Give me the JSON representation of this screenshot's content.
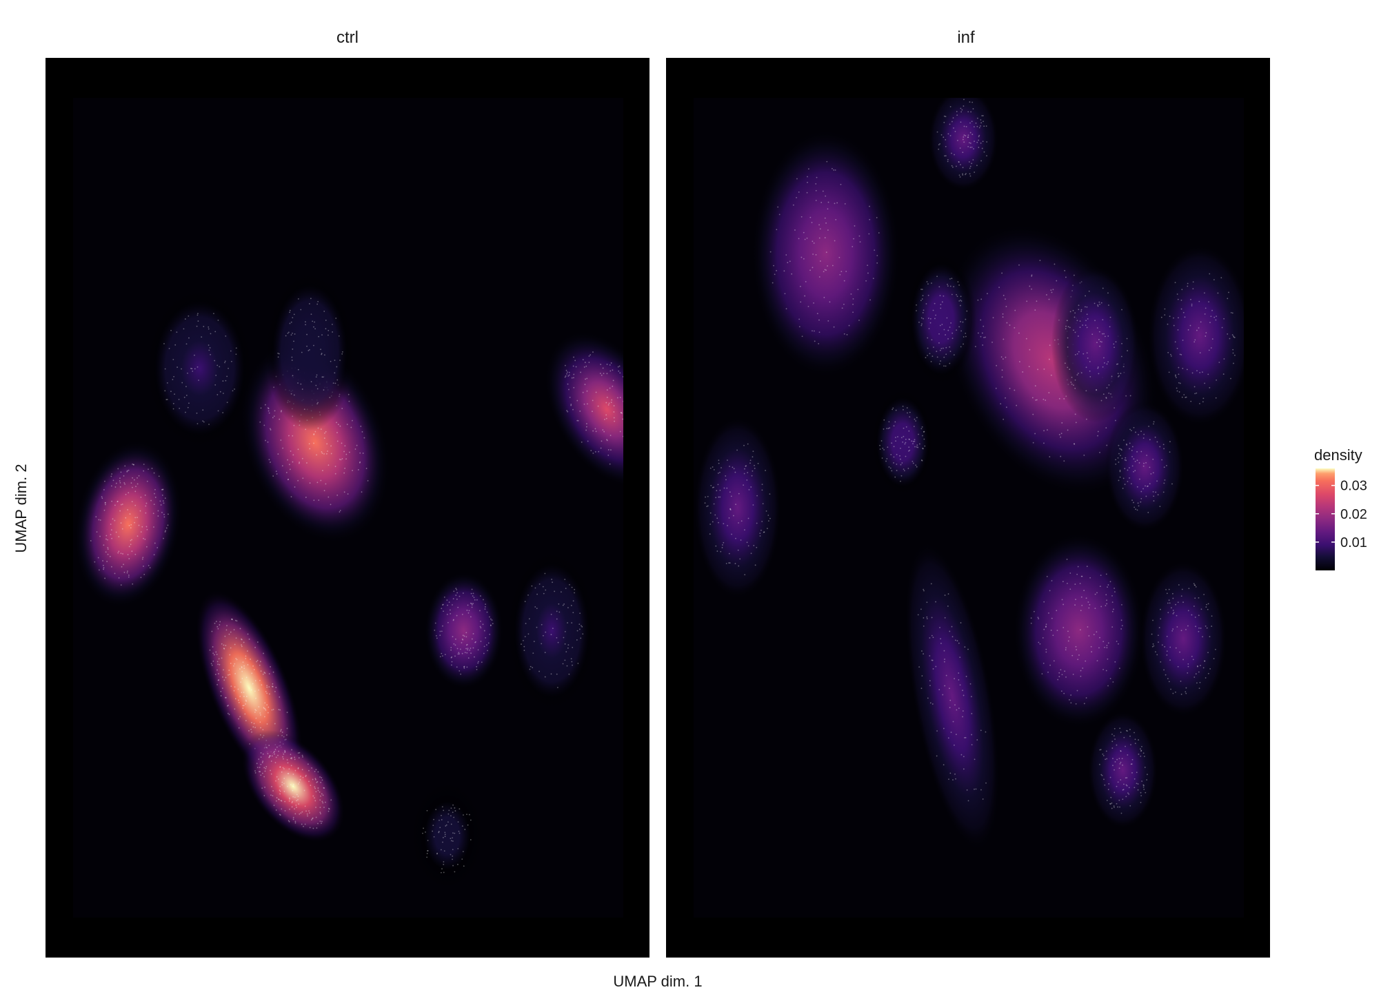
{
  "chart_data": {
    "type": "heatmap",
    "subtype": "faceted UMAP density plot",
    "xlabel": "UMAP dim. 1",
    "ylabel": "UMAP dim. 2",
    "panels": [
      {
        "label": "ctrl",
        "clusters": [
          {
            "x": 0.1,
            "y": 0.52,
            "sx": 0.06,
            "sy": 0.065,
            "rot": 10,
            "peak": 0.026
          },
          {
            "x": 0.44,
            "y": 0.42,
            "sx": 0.08,
            "sy": 0.08,
            "rot": -20,
            "peak": 0.027
          },
          {
            "x": 0.97,
            "y": 0.38,
            "sx": 0.06,
            "sy": 0.065,
            "rot": -30,
            "peak": 0.022
          },
          {
            "x": 0.23,
            "y": 0.33,
            "sx": 0.06,
            "sy": 0.06,
            "rot": 0,
            "peak": 0.006
          },
          {
            "x": 0.43,
            "y": 0.31,
            "sx": 0.05,
            "sy": 0.06,
            "rot": 0,
            "peak": 0.005
          },
          {
            "x": 0.71,
            "y": 0.65,
            "sx": 0.045,
            "sy": 0.045,
            "rot": 0,
            "peak": 0.017
          },
          {
            "x": 0.87,
            "y": 0.65,
            "sx": 0.05,
            "sy": 0.06,
            "rot": 0,
            "peak": 0.006
          },
          {
            "x": 0.32,
            "y": 0.72,
            "sx": 0.045,
            "sy": 0.08,
            "rot": -22,
            "peak": 0.036
          },
          {
            "x": 0.4,
            "y": 0.84,
            "sx": 0.045,
            "sy": 0.05,
            "rot": -40,
            "peak": 0.034
          },
          {
            "x": 0.68,
            "y": 0.9,
            "sx": 0.04,
            "sy": 0.04,
            "rot": 0,
            "peak": 0.004
          }
        ]
      },
      {
        "label": "inf",
        "clusters": [
          {
            "x": 0.24,
            "y": 0.19,
            "sx": 0.085,
            "sy": 0.095,
            "rot": 0,
            "peak": 0.015
          },
          {
            "x": 0.49,
            "y": 0.05,
            "sx": 0.04,
            "sy": 0.04,
            "rot": 0,
            "peak": 0.011
          },
          {
            "x": 0.65,
            "y": 0.32,
            "sx": 0.11,
            "sy": 0.11,
            "rot": -25,
            "peak": 0.02
          },
          {
            "x": 0.73,
            "y": 0.3,
            "sx": 0.05,
            "sy": 0.06,
            "rot": 0,
            "peak": 0.012
          },
          {
            "x": 0.92,
            "y": 0.29,
            "sx": 0.06,
            "sy": 0.07,
            "rot": 0,
            "peak": 0.012
          },
          {
            "x": 0.45,
            "y": 0.27,
            "sx": 0.04,
            "sy": 0.05,
            "rot": 0,
            "peak": 0.009
          },
          {
            "x": 0.08,
            "y": 0.5,
            "sx": 0.05,
            "sy": 0.07,
            "rot": 0,
            "peak": 0.013
          },
          {
            "x": 0.38,
            "y": 0.42,
            "sx": 0.035,
            "sy": 0.04,
            "rot": 0,
            "peak": 0.008
          },
          {
            "x": 0.82,
            "y": 0.45,
            "sx": 0.045,
            "sy": 0.05,
            "rot": 0,
            "peak": 0.01
          },
          {
            "x": 0.7,
            "y": 0.65,
            "sx": 0.075,
            "sy": 0.075,
            "rot": 0,
            "peak": 0.017
          },
          {
            "x": 0.89,
            "y": 0.66,
            "sx": 0.05,
            "sy": 0.06,
            "rot": 0,
            "peak": 0.012
          },
          {
            "x": 0.47,
            "y": 0.73,
            "sx": 0.045,
            "sy": 0.12,
            "rot": -10,
            "peak": 0.01
          },
          {
            "x": 0.78,
            "y": 0.82,
            "sx": 0.04,
            "sy": 0.045,
            "rot": 0,
            "peak": 0.011
          }
        ]
      }
    ],
    "legend": {
      "title": "density",
      "ticks": [
        0.01,
        0.02,
        0.03
      ],
      "tick_labels": [
        "0.01",
        "0.02",
        "0.03"
      ],
      "range": [
        0.0,
        0.036
      ],
      "palette": "magma",
      "placement": "right"
    },
    "colors": {
      "background": "#000004",
      "panel_border": "#000000",
      "points": "#ffffff"
    }
  }
}
